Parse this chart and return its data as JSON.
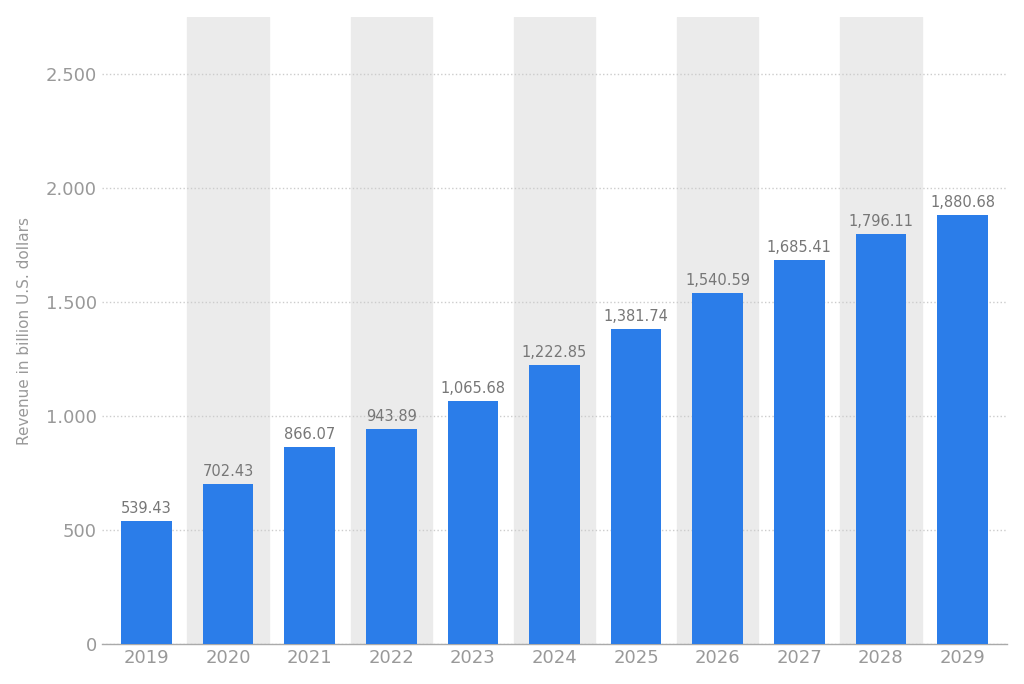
{
  "years": [
    "2019",
    "2020",
    "2021",
    "2022",
    "2023",
    "2024",
    "2025",
    "2026",
    "2027",
    "2028",
    "2029"
  ],
  "values": [
    539.43,
    702.43,
    866.07,
    943.89,
    1065.68,
    1222.85,
    1381.74,
    1540.59,
    1685.41,
    1796.11,
    1880.68
  ],
  "bar_color": "#2b7de9",
  "ylabel": "Revenue in billion U.S. dollars",
  "ylim": [
    0,
    2750
  ],
  "yticks": [
    0,
    500,
    1000,
    1500,
    2000,
    2500
  ],
  "background_color": "#ffffff",
  "plot_bg_color": "#ffffff",
  "grid_color": "#cccccc",
  "label_color": "#999999",
  "bar_label_color": "#777777",
  "label_fontsize": 11,
  "bar_label_fontsize": 10.5,
  "tick_fontsize": 13,
  "shade_color": "#ebebeb",
  "shade_indices": [
    1,
    3,
    5,
    7,
    9
  ]
}
